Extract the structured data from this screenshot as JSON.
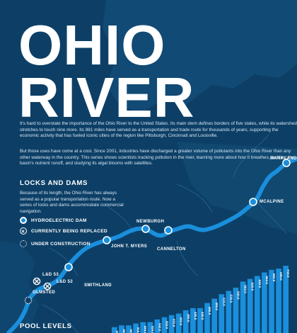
{
  "title": {
    "line1": "OHIO",
    "line2": "RIVER"
  },
  "intro": {
    "paragraph1": "It's hard to overstate the importance of the Ohio River to the United States. Its main stem defines borders of five states, while its watershed stretches to touch nine more. Its 981 miles have served as a transportation and trade route for thousands of years, supporting the economic activity that has fueled iconic cities of the region like Pittsburgh, Cincinnati and Louisville.",
    "paragraph2": "But those uses have come at a cost. Since 2001, industries have discharged a greater volume of pollutants into the Ohio River than any other waterway in the country. This series shows scientists tracking pollution in the river, learning more about how it breathes, tackling the basin's nutrient runoff, and studying its algal blooms with satellites."
  },
  "locks_and_dams": {
    "heading": "LOCKS AND DAMS",
    "body": "Because of its length, the Ohio River has always served as a popular transportation route. Now a series of locks and dams accommodate commercial navigation."
  },
  "legend": [
    {
      "label": "HYDROELECTRIC DAM",
      "icon": "hydroelectric-dam-icon"
    },
    {
      "label": "CURRENTLY BEING REPLACED",
      "icon": "x-circle-icon"
    },
    {
      "label": "UNDER CONSTRUCTION",
      "icon": "dotted-circle-icon"
    }
  ],
  "map": {
    "dams": [
      "MARKLAND",
      "MCALPINE",
      "NEWBURGH",
      "CANNELTON",
      "JOHN T. MYERS",
      "SMITHLAND",
      "L&D 52",
      "L&D 53",
      "OLMSTED"
    ],
    "colors": {
      "river": "#1a8fdc",
      "background": "#0d3f66",
      "land": "#114a75"
    }
  },
  "pool_levels": {
    "heading": "POOL LEVELS",
    "bar_labels": [
      "290.0",
      "302.0",
      "302.0",
      "315.0",
      "324.0",
      "324.0",
      "342.5",
      "358.0",
      "372.0",
      "383.0",
      "405.0",
      "420.0",
      "420.0",
      "455.0",
      "485.0",
      "515.0",
      "538.0",
      "560.0",
      "602.0",
      "620.0",
      "640.0",
      "664.5",
      "682.0",
      "690.0",
      "710.0"
    ],
    "bar_color": "#1a8fdc"
  }
}
